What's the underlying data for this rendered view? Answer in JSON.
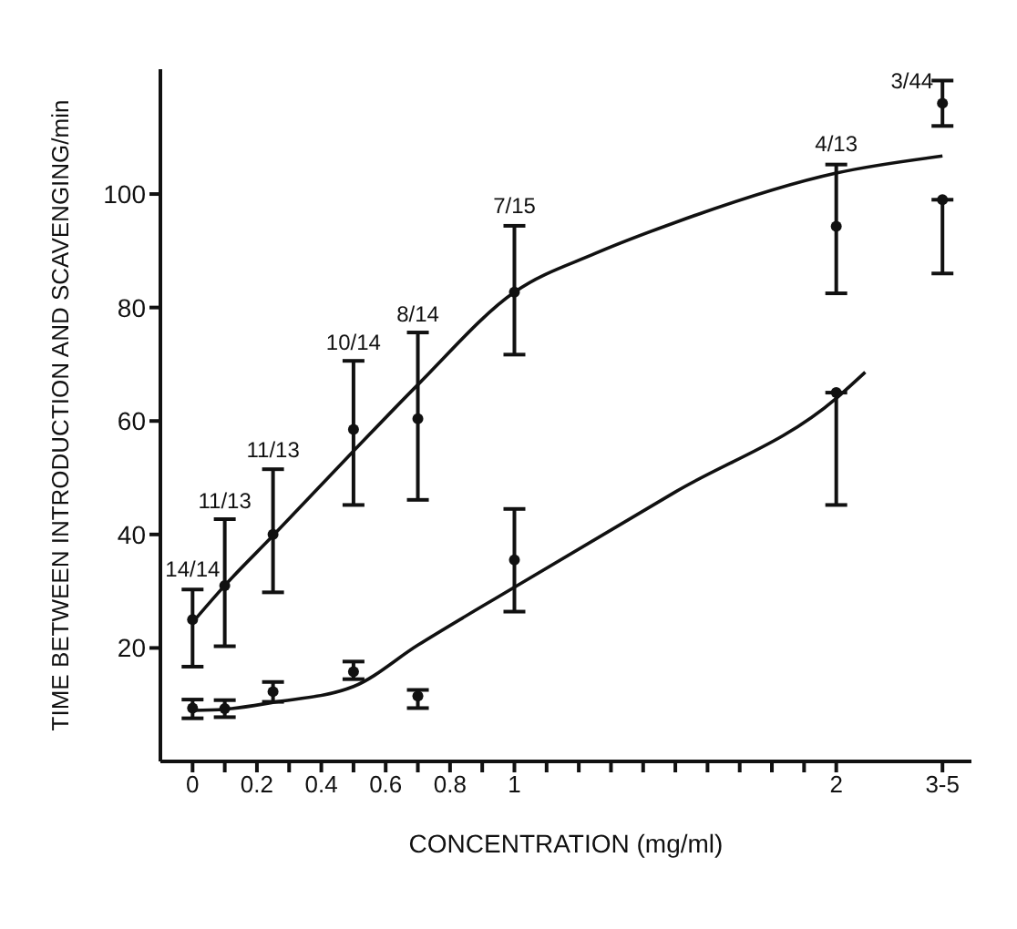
{
  "chart_data": {
    "type": "scatter",
    "xlabel": "CONCENTRATION (mg/ml)",
    "ylabel": "TIME BETWEEN INTRODUCTION AND SCAVENGING/min",
    "xlim": [
      -0.1,
      2.42
    ],
    "ylim": [
      0,
      122
    ],
    "xticks": [
      0,
      {
        "value": 0.1,
        "label": null
      },
      0.2,
      {
        "value": 0.3,
        "label": null
      },
      0.4,
      {
        "value": 0.5,
        "label": null
      },
      0.6,
      {
        "value": 0.7,
        "label": null
      },
      0.8,
      {
        "value": 0.9,
        "label": null
      },
      1,
      {
        "value": 1.1,
        "label": null
      },
      {
        "value": 1.2,
        "label": null
      },
      {
        "value": 1.3,
        "label": null
      },
      {
        "value": 1.4,
        "label": null
      },
      {
        "value": 1.5,
        "label": null
      },
      {
        "value": 1.6,
        "label": null
      },
      {
        "value": 1.7,
        "label": null
      },
      {
        "value": 1.8,
        "label": null
      },
      {
        "value": 1.9,
        "label": null
      },
      2,
      {
        "value": 2.33,
        "label": "3-5"
      }
    ],
    "yticks": [
      20,
      40,
      60,
      80,
      100
    ],
    "grid": false,
    "legend": false,
    "marker": "circle",
    "series": [
      {
        "color": "#111111",
        "x": [
          0,
          0.1,
          0.25,
          0.5,
          0.7,
          1,
          2,
          2.33
        ],
        "values": [
          25,
          31,
          40,
          58.5,
          60.4,
          82.7,
          94.3,
          99
        ],
        "errors": [
          [
            16.7,
            30.3
          ],
          [
            20.3,
            42.7
          ],
          [
            29.8,
            51.5
          ],
          [
            45.2,
            70.6
          ],
          [
            46.1,
            75.6
          ],
          [
            71.7,
            94.4
          ],
          [
            82.5,
            105.2
          ],
          [
            86,
            99
          ]
        ]
      },
      {
        "color": "#111111",
        "x": [
          2.33
        ],
        "values": [
          116
        ],
        "errors": [
          [
            112,
            120
          ]
        ]
      },
      {
        "color": "#111111",
        "x": [
          0,
          0.1,
          0.25,
          0.5,
          0.7,
          1,
          2
        ],
        "values": [
          9.4,
          9.3,
          12.3,
          15.8,
          11.5,
          35.5,
          65
        ],
        "errors": [
          [
            7.6,
            10.9
          ],
          [
            7.8,
            10.8
          ],
          [
            10.5,
            14
          ],
          [
            14.5,
            17.6
          ],
          [
            9.4,
            12.6
          ],
          [
            26.4,
            44.5
          ],
          [
            45.2,
            65
          ]
        ]
      },
      {
        "type": "line",
        "marker": "none",
        "color": "#111111",
        "x": [
          0,
          0.1,
          0.25,
          0.5,
          0.7,
          1,
          1.25,
          1.5,
          2,
          2.33
        ],
        "values": [
          24.5,
          31,
          39.8,
          54.7,
          66.4,
          82.7,
          89.5,
          95,
          103.7,
          106.7
        ]
      },
      {
        "type": "line",
        "marker": "none",
        "color": "#111111",
        "x": [
          0,
          0.1,
          0.25,
          0.5,
          0.7,
          1,
          1.5,
          2,
          2.09
        ],
        "values": [
          9,
          9.2,
          10.4,
          13.2,
          20.5,
          30.7,
          47.5,
          64,
          68.6
        ]
      }
    ],
    "annotations": [
      {
        "text": "14/14",
        "x": 0,
        "y": 31
      },
      {
        "text": "11/13",
        "x": 0.1,
        "y": 43
      },
      {
        "text": "11/13",
        "x": 0.25,
        "y": 52
      },
      {
        "text": "10/14",
        "x": 0.5,
        "y": 71
      },
      {
        "text": "8/14",
        "x": 0.7,
        "y": 76
      },
      {
        "text": "7/15",
        "x": 1,
        "y": 95
      },
      {
        "text": "4/13",
        "x": 2,
        "y": 106
      },
      {
        "text": "3/44",
        "x": 2.33,
        "y": 120
      }
    ]
  }
}
